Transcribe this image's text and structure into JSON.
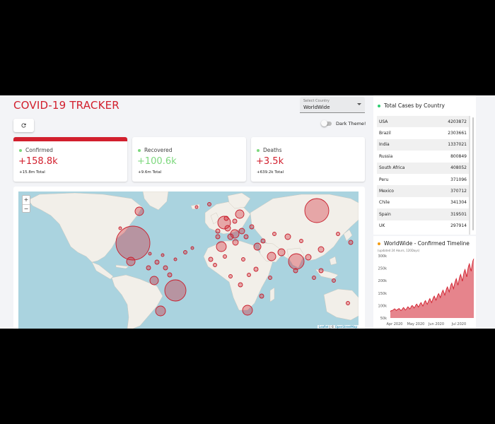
{
  "header": {
    "title": "COVID-19 TRACKER",
    "select_label": "Select Country",
    "select_value": "WorldWide",
    "dark_theme_label": "Dark Theme!"
  },
  "stats": [
    {
      "title": "Confirmed",
      "value": "+158.8k",
      "total": "+15.8m Total",
      "color": "#d21f2d"
    },
    {
      "title": "Recovered",
      "value": "+100.6k",
      "total": "+9.6m Total",
      "color": "#7dd87d"
    },
    {
      "title": "Deaths",
      "value": "+3.5k",
      "total": "+639.2k Total",
      "color": "#d21f2d"
    }
  ],
  "map": {
    "zoom_in": "+",
    "zoom_out": "−",
    "attribution_leaflet": "Leaflet",
    "attribution_sep": " | © ",
    "attribution_osm": "OpenStreetMap"
  },
  "table": {
    "title": "Total Cases by Country",
    "rows": [
      {
        "country": "USA",
        "cases": "4203872"
      },
      {
        "country": "Brazil",
        "cases": "2303661"
      },
      {
        "country": "India",
        "cases": "1337021"
      },
      {
        "country": "Russia",
        "cases": "800849"
      },
      {
        "country": "South Africa",
        "cases": "408052"
      },
      {
        "country": "Peru",
        "cases": "371096"
      },
      {
        "country": "Mexico",
        "cases": "370712"
      },
      {
        "country": "Chile",
        "cases": "341304"
      },
      {
        "country": "Spain",
        "cases": "319501"
      },
      {
        "country": "UK",
        "cases": "297914"
      }
    ]
  },
  "timeline": {
    "title": "WorldWide - Confirmed Timeline",
    "subtitle": "(updated 24 Hours, 120Days)"
  },
  "chart_data": {
    "type": "area",
    "title": "WorldWide - Confirmed Timeline",
    "y_ticks": [
      "300k",
      "250k",
      "200k",
      "150k",
      "100k",
      "50k"
    ],
    "x_ticks": [
      "Apr 2020",
      "May 2020",
      "Jun 2020",
      "Jul 2020"
    ],
    "ylim": [
      50000,
      300000
    ],
    "series": [
      {
        "values": [
          75000,
          80000,
          79000,
          82000,
          85000,
          87000,
          83000,
          80000,
          84000,
          86000,
          88000,
          84000,
          80000,
          82000,
          88000,
          92000,
          88000,
          82000,
          85000,
          90000,
          95000,
          92000,
          86000,
          90000,
          98000,
          100000,
          96000,
          90000,
          95000,
          102000,
          106000,
          100000,
          94000,
          100000,
          108000,
          112000,
          105000,
          98000,
          106000,
          115000,
          120000,
          112000,
          105000,
          113000,
          122000,
          128000,
          120000,
          112000,
          122000,
          132000,
          138000,
          130000,
          122000,
          132000,
          142000,
          148000,
          140000,
          132000,
          145000,
          155000,
          162000,
          152000,
          142000,
          156000,
          168000,
          175000,
          165000,
          155000,
          170000,
          183000,
          190000,
          178000,
          168000,
          185000,
          198000,
          208000,
          195000,
          182000,
          200000,
          215000,
          225000,
          212000,
          198000,
          218000,
          235000,
          245000,
          230000,
          215000,
          240000,
          258000,
          268000,
          252000,
          238000,
          262000,
          280000,
          288000
        ]
      }
    ],
    "color": "#d21f2d",
    "grid": false
  },
  "colors": {
    "accent": "#d21f2d",
    "recovered": "#7dd87d",
    "map_water": "#aad3df",
    "map_land": "#f2efe9",
    "bubble_fill": "rgba(210,31,45,0.35)",
    "table_dot": "#2ecc71",
    "timeline_dot": "#f39c12"
  },
  "icons": {
    "refresh": "refresh-icon",
    "dropdown": "chevron-down-icon"
  }
}
